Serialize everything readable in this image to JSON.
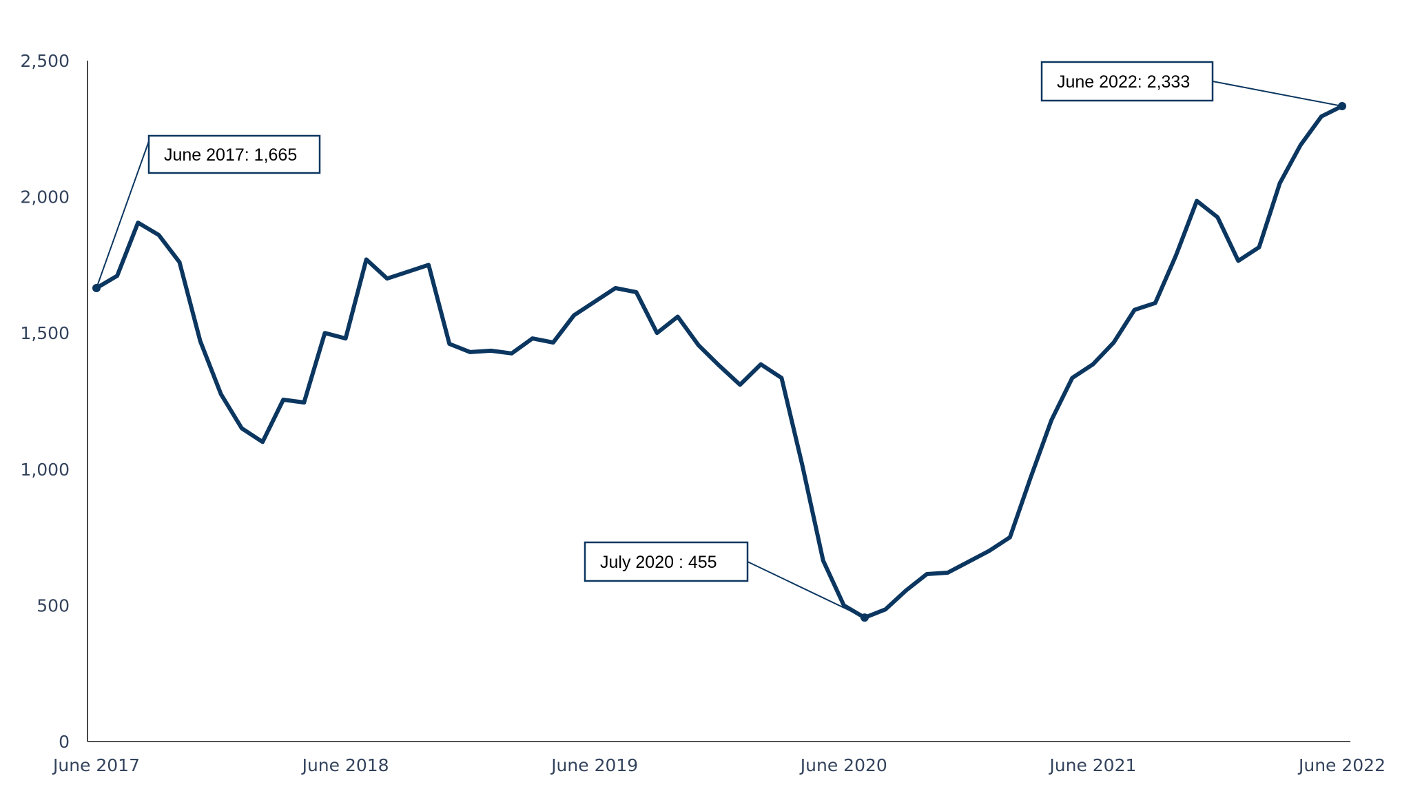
{
  "chart_data": {
    "type": "line",
    "title": "",
    "xlabel": "",
    "ylabel": "",
    "ylim": [
      0,
      2500
    ],
    "y_ticks": [
      0,
      500,
      1000,
      1500,
      2000,
      2500
    ],
    "y_tick_labels": [
      "0",
      "500",
      "1,000",
      "1,500",
      "2,000",
      "2,500"
    ],
    "x_tick_labels": [
      "June 2017",
      "June 2018",
      "June 2019",
      "June 2020",
      "June 2021",
      "June 2022"
    ],
    "x_tick_dates": [
      "2017-06",
      "2018-06",
      "2019-06",
      "2020-06",
      "2021-06",
      "2022-06"
    ],
    "grid": false,
    "legend": "none",
    "line_color": "#0b3660",
    "series": [
      {
        "x": [
          "2017-06",
          "2017-07",
          "2017-08",
          "2017-09",
          "2017-10",
          "2017-11",
          "2017-12",
          "2018-01",
          "2018-02",
          "2018-03",
          "2018-04",
          "2018-05",
          "2018-06",
          "2018-07",
          "2018-08",
          "2018-09",
          "2018-10",
          "2018-11",
          "2018-12",
          "2019-01",
          "2019-02",
          "2019-03",
          "2019-04",
          "2019-05",
          "2019-06",
          "2019-07",
          "2019-08",
          "2019-09",
          "2019-10",
          "2019-11",
          "2019-12",
          "2020-01",
          "2020-02",
          "2020-03",
          "2020-04",
          "2020-05",
          "2020-06",
          "2020-07",
          "2020-08",
          "2020-09",
          "2020-10",
          "2020-11",
          "2020-12",
          "2021-01",
          "2021-02",
          "2021-03",
          "2021-04",
          "2021-05",
          "2021-06",
          "2021-07",
          "2021-08",
          "2021-09",
          "2021-10",
          "2021-11",
          "2021-12",
          "2022-01",
          "2022-02",
          "2022-03",
          "2022-04",
          "2022-05",
          "2022-06"
        ],
        "values": [
          1665,
          1710,
          1905,
          1860,
          1760,
          1470,
          1275,
          1150,
          1100,
          1255,
          1245,
          1500,
          1480,
          1770,
          1700,
          1725,
          1750,
          1460,
          1430,
          1435,
          1425,
          1480,
          1465,
          1565,
          1615,
          1665,
          1650,
          1500,
          1560,
          1455,
          1380,
          1310,
          1385,
          1335,
          1015,
          665,
          500,
          455,
          485,
          555,
          615,
          620,
          660,
          700,
          750,
          970,
          1180,
          1335,
          1385,
          1465,
          1585,
          1610,
          1785,
          1985,
          1925,
          1765,
          1815,
          2050,
          2190,
          2295,
          2333
        ]
      }
    ],
    "annotations": [
      {
        "label": "June 2017: 1,665",
        "x": "2017-06",
        "value": 1665
      },
      {
        "label": "July 2020 : 455",
        "x": "2020-07",
        "value": 455
      },
      {
        "label": "June 2022: 2,333",
        "x": "2022-06",
        "value": 2333
      }
    ]
  }
}
